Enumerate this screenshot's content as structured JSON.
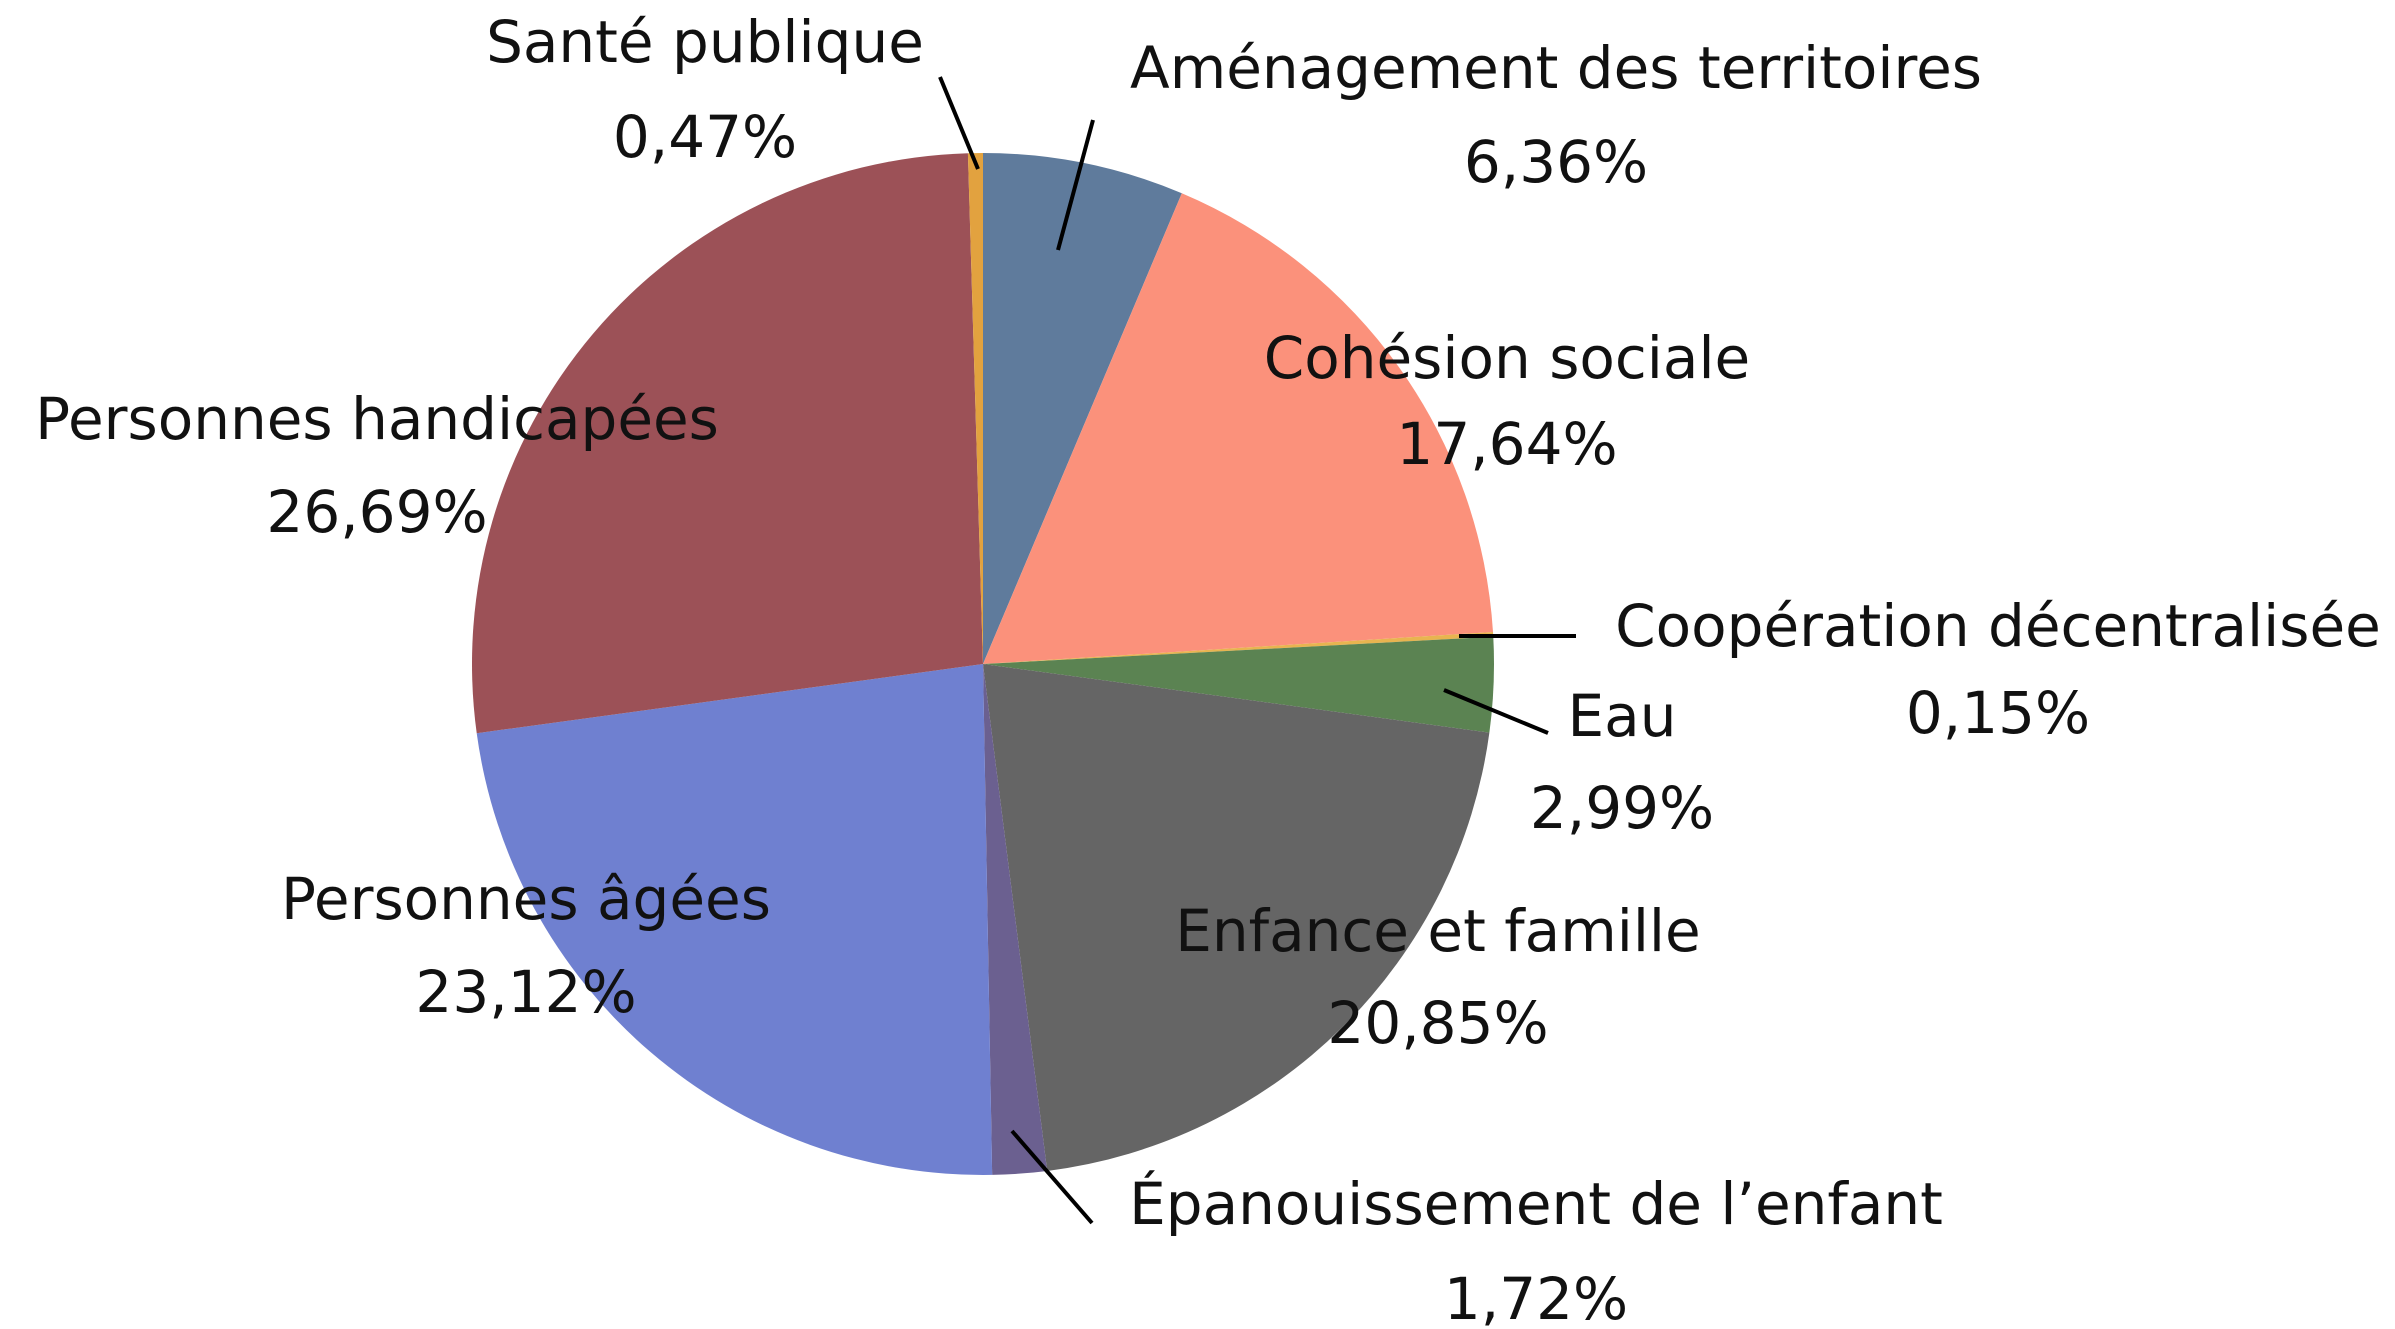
{
  "chart_data": {
    "type": "pie",
    "categories": [
      "Aménagement des territoires",
      "Cohésion sociale",
      "Coopération décentralisée",
      "Eau",
      "Enfance et famille",
      "Épanouissement de l’enfant",
      "Personnes âgées",
      "Personnes handicapées",
      "Santé publique"
    ],
    "values": [
      6.36,
      17.64,
      0.15,
      2.99,
      20.85,
      1.72,
      23.12,
      26.69,
      0.47
    ],
    "value_labels": [
      "6,36%",
      "17,64%",
      "0,15%",
      "2,99%",
      "20,85%",
      "1,72%",
      "23,12%",
      "26,69%",
      "0,47%"
    ],
    "colors": [
      "#5f7b9c",
      "#fb917b",
      "#e8b450",
      "#5b8352",
      "#656565",
      "#6b6090",
      "#6f80d0",
      "#9c5157",
      "#e2a23f"
    ]
  }
}
